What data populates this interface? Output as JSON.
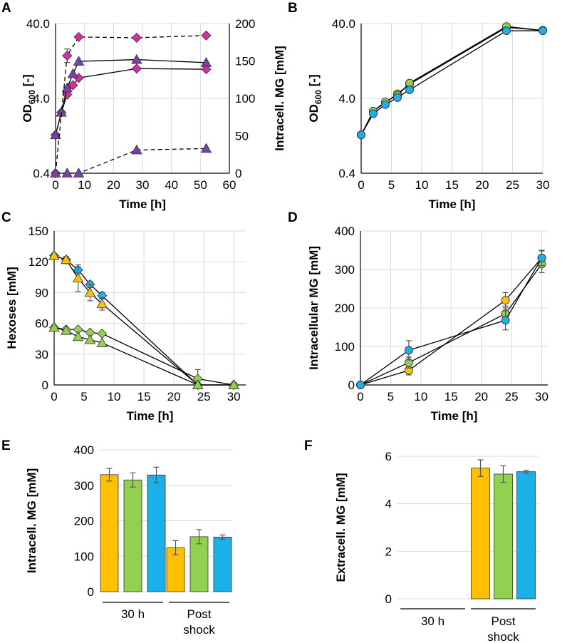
{
  "figure": {
    "panel_labels": [
      "A",
      "B",
      "C",
      "D",
      "E",
      "F"
    ]
  },
  "colors": {
    "yellow": "#ffc000",
    "green": "#92d050",
    "blue": "#1cb0eb",
    "magenta": "#d62ca5",
    "purple": "#7b3fa6",
    "gray": "#999999"
  },
  "chart_data": [
    {
      "panel": "A",
      "type": "line",
      "title": "",
      "xlabel": "Time [h]",
      "ylabel": "OD600 [-]",
      "y2label": "Intracell. MG [mM]",
      "ylabel_main": "OD",
      "ylabel_sub": "600",
      "ylabel_tail": " [-]",
      "xlim": [
        0,
        60
      ],
      "xticks": [
        "0",
        "10",
        "20",
        "30",
        "40",
        "50",
        "60"
      ],
      "ylim_log": [
        0.4,
        40
      ],
      "yticks": [
        "0.4",
        "4.0",
        "40.0"
      ],
      "y2lim": [
        0,
        200
      ],
      "y2ticks": [
        "0",
        "50",
        "100",
        "150",
        "200"
      ],
      "series": [
        {
          "name": "OD600 (diamond)",
          "axis": "left",
          "marker": "diamond",
          "color": "magenta",
          "dashed": false,
          "x": [
            0,
            2,
            4,
            6,
            8,
            28,
            52
          ],
          "y": [
            1.3,
            2.6,
            4.5,
            6.0,
            7.5,
            10.0,
            9.8
          ]
        },
        {
          "name": "OD600 (triangle)",
          "axis": "left",
          "marker": "triangle",
          "color": "purple",
          "dashed": false,
          "x": [
            0,
            2,
            4,
            6,
            8,
            28,
            52
          ],
          "y": [
            1.3,
            2.6,
            5.5,
            8.5,
            12.5,
            13.2,
            12.0
          ]
        },
        {
          "name": "Intracell. MG (diamond)",
          "axis": "right",
          "marker": "diamond",
          "color": "magenta",
          "dashed": true,
          "x": [
            0,
            4,
            8,
            28,
            52
          ],
          "y": [
            0,
            157,
            182,
            181,
            184
          ],
          "err": [
            0,
            9,
            0,
            0,
            0
          ]
        },
        {
          "name": "Intracell. MG (triangle)",
          "axis": "right",
          "marker": "triangle",
          "color": "purple",
          "dashed": true,
          "x": [
            0,
            4,
            8,
            28,
            52
          ],
          "y": [
            0,
            0,
            0,
            31,
            33
          ]
        }
      ]
    },
    {
      "panel": "B",
      "type": "line",
      "title": "",
      "xlabel": "Time [h]",
      "ylabel": "OD600 [-]",
      "ylabel_main": "OD",
      "ylabel_sub": "600",
      "ylabel_tail": " [-]",
      "xlim": [
        0,
        30
      ],
      "xticks": [
        "0",
        "5",
        "10",
        "15",
        "20",
        "25",
        "30"
      ],
      "ylim_log": [
        0.4,
        40
      ],
      "yticks": [
        "0.4",
        "4.0",
        "40.0"
      ],
      "series": [
        {
          "name": "yellow",
          "color": "yellow",
          "x": [
            0,
            2,
            4,
            6,
            8,
            24,
            30
          ],
          "y": [
            1.3,
            2.7,
            3.5,
            4.6,
            6.2,
            35.5,
            32.5
          ]
        },
        {
          "name": "green",
          "color": "green",
          "x": [
            0,
            2,
            4,
            6,
            8,
            24,
            30
          ],
          "y": [
            1.3,
            2.7,
            3.6,
            4.4,
            6.4,
            36.5,
            32.3
          ]
        },
        {
          "name": "blue",
          "color": "blue",
          "x": [
            0,
            2,
            4,
            6,
            8,
            24,
            30
          ],
          "y": [
            1.3,
            2.5,
            3.3,
            4.1,
            5.2,
            32.0,
            32.0
          ]
        }
      ]
    },
    {
      "panel": "C",
      "type": "line",
      "title": "",
      "xlabel": "Time [h]",
      "ylabel": "Hexoses [mM]",
      "xlim": [
        0,
        32
      ],
      "xticks": [
        "0",
        "5",
        "10",
        "15",
        "20",
        "25",
        "30"
      ],
      "ylim": [
        0,
        150
      ],
      "yticks": [
        "0",
        "30",
        "60",
        "90",
        "120",
        "150"
      ],
      "series": [
        {
          "name": "blue diamond",
          "marker": "diamond",
          "color": "blue",
          "x": [
            0,
            2,
            4,
            6,
            8,
            24,
            30
          ],
          "y": [
            126,
            122,
            112,
            98,
            87,
            0,
            0
          ],
          "err": [
            0,
            3,
            3,
            3,
            3,
            0,
            0
          ]
        },
        {
          "name": "yellow triangle",
          "marker": "triangle",
          "color": "yellow",
          "x": [
            0,
            2,
            4,
            6,
            8,
            24,
            30
          ],
          "y": [
            126,
            122,
            104,
            90,
            79,
            0,
            0
          ],
          "err": [
            0,
            3,
            13,
            8,
            6,
            0,
            0
          ]
        },
        {
          "name": "green diamond",
          "marker": "diamond",
          "color": "green",
          "x": [
            0,
            2,
            4,
            6,
            8,
            24,
            30
          ],
          "y": [
            56,
            54,
            54,
            51,
            50,
            6,
            0
          ],
          "err": [
            0,
            0,
            0,
            0,
            0,
            9,
            0
          ]
        },
        {
          "name": "green triangle",
          "marker": "triangle",
          "color": "green",
          "x": [
            0,
            2,
            4,
            6,
            8,
            24,
            30
          ],
          "y": [
            56,
            53,
            47,
            44,
            41,
            0,
            0
          ]
        }
      ]
    },
    {
      "panel": "D",
      "type": "line",
      "title": "",
      "xlabel": "Time [h]",
      "ylabel": "Intracellular MG [mM]",
      "xlim": [
        0,
        31
      ],
      "xticks": [
        "0",
        "5",
        "10",
        "15",
        "20",
        "25",
        "30"
      ],
      "ylim": [
        0,
        400
      ],
      "yticks": [
        "0",
        "100",
        "200",
        "300",
        "400"
      ],
      "series": [
        {
          "name": "yellow",
          "color": "yellow",
          "x": [
            0,
            8,
            24,
            30
          ],
          "y": [
            0,
            38,
            220,
            330
          ],
          "err": [
            0,
            12,
            20,
            18
          ]
        },
        {
          "name": "green",
          "color": "green",
          "x": [
            0,
            8,
            24,
            30
          ],
          "y": [
            0,
            58,
            185,
            314
          ],
          "err": [
            0,
            14,
            20,
            22
          ]
        },
        {
          "name": "blue",
          "color": "blue",
          "x": [
            0,
            8,
            24,
            30
          ],
          "y": [
            0,
            90,
            168,
            330
          ],
          "err": [
            0,
            25,
            25,
            20
          ]
        }
      ]
    },
    {
      "panel": "E",
      "type": "bar",
      "title": "",
      "ylabel": "Intracell. MG [mM]",
      "categories": [
        "30 h",
        "Post shock"
      ],
      "category_lines": [
        [
          "30 h"
        ],
        [
          "Post",
          "shock"
        ]
      ],
      "ylim": [
        0,
        400
      ],
      "yticks": [
        "0",
        "100",
        "200",
        "300",
        "400"
      ],
      "series": [
        {
          "name": "yellow",
          "color": "yellow",
          "values": [
            330,
            124
          ],
          "err": [
            18,
            20
          ]
        },
        {
          "name": "green",
          "color": "green",
          "values": [
            315,
            155
          ],
          "err": [
            20,
            20
          ]
        },
        {
          "name": "blue",
          "color": "blue",
          "values": [
            329,
            154
          ],
          "err": [
            22,
            6
          ]
        }
      ]
    },
    {
      "panel": "F",
      "type": "bar",
      "title": "",
      "ylabel": "Extracell. MG [mM]",
      "categories": [
        "30 h",
        "Post shock"
      ],
      "category_lines": [
        [
          "30 h"
        ],
        [
          "Post",
          "shock"
        ]
      ],
      "ylim": [
        0,
        6
      ],
      "yticks": [
        "0",
        "2",
        "4",
        "6"
      ],
      "series": [
        {
          "name": "yellow",
          "color": "yellow",
          "values": [
            0,
            5.5
          ],
          "err": [
            0,
            0.35
          ]
        },
        {
          "name": "green",
          "color": "green",
          "values": [
            0,
            5.25
          ],
          "err": [
            0,
            0.35
          ]
        },
        {
          "name": "blue",
          "color": "blue",
          "values": [
            0,
            5.35
          ],
          "err": [
            0,
            0.06
          ]
        }
      ]
    }
  ]
}
